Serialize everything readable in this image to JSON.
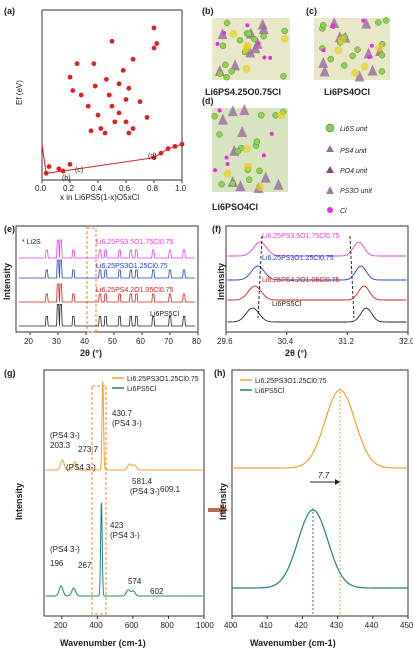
{
  "chart_data": [
    {
      "panel": "(a)",
      "type": "scatter",
      "xlabel": "x in Li6PS5(1-x)O5xCl",
      "ylabel": "Ef (eV)",
      "xlim": [
        0,
        1.0
      ],
      "ylim": [
        -0.16,
        0.6
      ],
      "xticks": [
        "0.0",
        "0.2",
        "0.4",
        "0.6",
        "0.8",
        "1.0"
      ],
      "hull": [
        [
          0,
          0
        ],
        [
          0.03,
          -0.13
        ],
        [
          0.15,
          -0.12
        ],
        [
          0.8,
          -0.06
        ],
        [
          0.85,
          -0.04
        ],
        [
          0.9,
          -0.02
        ],
        [
          0.95,
          -0.01
        ],
        [
          1.0,
          0
        ]
      ],
      "points": [
        [
          0.03,
          -0.13
        ],
        [
          0.05,
          -0.1
        ],
        [
          0.12,
          -0.11
        ],
        [
          0.15,
          -0.12
        ],
        [
          0.2,
          -0.09
        ],
        [
          0.2,
          0.3
        ],
        [
          0.22,
          0.24
        ],
        [
          0.25,
          0.36
        ],
        [
          0.28,
          0.22
        ],
        [
          0.33,
          0.17
        ],
        [
          0.35,
          0.06
        ],
        [
          0.37,
          0.36
        ],
        [
          0.38,
          0.26
        ],
        [
          0.4,
          0.13
        ],
        [
          0.42,
          0.07
        ],
        [
          0.45,
          0.05
        ],
        [
          0.46,
          0.29
        ],
        [
          0.48,
          0.22
        ],
        [
          0.5,
          0.46
        ],
        [
          0.5,
          0.17
        ],
        [
          0.52,
          0.1
        ],
        [
          0.55,
          0.14
        ],
        [
          0.55,
          0.27
        ],
        [
          0.58,
          0.33
        ],
        [
          0.6,
          0.2
        ],
        [
          0.6,
          0.1
        ],
        [
          0.62,
          0.05
        ],
        [
          0.62,
          0.25
        ],
        [
          0.65,
          0.07
        ],
        [
          0.65,
          0.38
        ],
        [
          0.7,
          0.19
        ],
        [
          0.8,
          0.52
        ],
        [
          0.82,
          0.45
        ],
        [
          0.8,
          0.43
        ],
        [
          0.75,
          0.12
        ],
        [
          0.8,
          -0.06
        ],
        [
          0.85,
          -0.04
        ],
        [
          0.9,
          -0.02
        ],
        [
          0.95,
          -0.01
        ],
        [
          1.0,
          0
        ]
      ],
      "annotations": [
        "(b)",
        "(c)",
        "(d)"
      ]
    },
    {
      "panel": "(e)",
      "type": "line",
      "xlabel": "2θ (°)",
      "ylabel": "Intensity",
      "xlim": [
        15,
        80
      ],
      "xticks": [
        "20",
        "30",
        "40",
        "50",
        "60",
        "70",
        "80"
      ],
      "series": [
        {
          "name": "Li6.25PS3.5O1.75Cl0.75",
          "color": "#e040e0"
        },
        {
          "name": "Li6.25PS3O1.25Cl0.75",
          "color": "#2040c0"
        },
        {
          "name": "Li6.25PS4.2O1.05Cl0.75",
          "color": "#d02020"
        },
        {
          "name": "Li6PS5Cl",
          "color": "#222222"
        }
      ],
      "marker_label": "Li2S"
    },
    {
      "panel": "(f)",
      "type": "line",
      "xlabel": "2θ (°)",
      "ylabel": "Intensity",
      "xlim": [
        29.6,
        32.0
      ],
      "xticks": [
        "29.6",
        "30.4",
        "31.2",
        "32.0"
      ],
      "series": [
        {
          "name": "Li6.25PS3.5O1.75Cl0.75",
          "color": "#e040e0"
        },
        {
          "name": "Li6.25PS3O1.25Cl0.75",
          "color": "#2040c0"
        },
        {
          "name": "Li6.25PS4.2O1.05Cl0.75",
          "color": "#d02020"
        },
        {
          "name": "Li6PS5Cl",
          "color": "#222222"
        }
      ]
    },
    {
      "panel": "(g)",
      "type": "line",
      "xlabel": "Wavenumber (cm-1)",
      "ylabel": "Intensity",
      "xlim": [
        100,
        1000
      ],
      "xticks": [
        "200",
        "400",
        "600",
        "800",
        "1000"
      ],
      "series": [
        {
          "name": "Li6.25PS3O1.25Cl0.75",
          "color": "#f0a030"
        },
        {
          "name": "Li6PS5Cl",
          "color": "#208080"
        }
      ],
      "peaks_top": [
        "203.3",
        "273.7",
        "430.7",
        "581.4",
        "609.1"
      ],
      "peaks_bottom": [
        "196",
        "267",
        "423",
        "574",
        "602"
      ]
    },
    {
      "panel": "(h)",
      "type": "line",
      "xlabel": "Wavenumber (cm-1)",
      "ylabel": "Intensity",
      "xlim": [
        400,
        450
      ],
      "xticks": [
        "400",
        "410",
        "420",
        "430",
        "440",
        "450"
      ],
      "series": [
        {
          "name": "Li6.25PS3O1.25Cl0.75",
          "color": "#f0a030",
          "peak": 430.7
        },
        {
          "name": "Li6PS5Cl",
          "color": "#208080",
          "peak": 423
        }
      ],
      "shift_label": "7.7"
    }
  ],
  "labels": {
    "a": "(a)",
    "b": "(b)",
    "c": "(c)",
    "d": "(d)",
    "e": "(e)",
    "f": "(f)",
    "g": "(g)",
    "h": "(h)",
    "ef_axis": "Ef (eV)",
    "a_xlabel": "x in Li6PS5(1-x)O5xCl",
    "struct_b": "Li6PS4.25O0.75Cl",
    "struct_c": "Li6PS4OCl",
    "struct_d": "Li6PSO4Cl",
    "legend_items": [
      "Li6S unit",
      "PS4 unit",
      "PO4 unit",
      "PS3O unit",
      "Cl"
    ],
    "intensity": "Intensity",
    "two_theta": "2θ (°)",
    "wavenumber": "Wavenumber (cm-1)",
    "li2s": "* Li2S",
    "ps4_3": "(PS4 3-)"
  },
  "colors": {
    "red": "#e02020",
    "magenta": "#e040e0",
    "blue": "#2040c0",
    "orange": "#f0a030",
    "teal": "#208080"
  }
}
